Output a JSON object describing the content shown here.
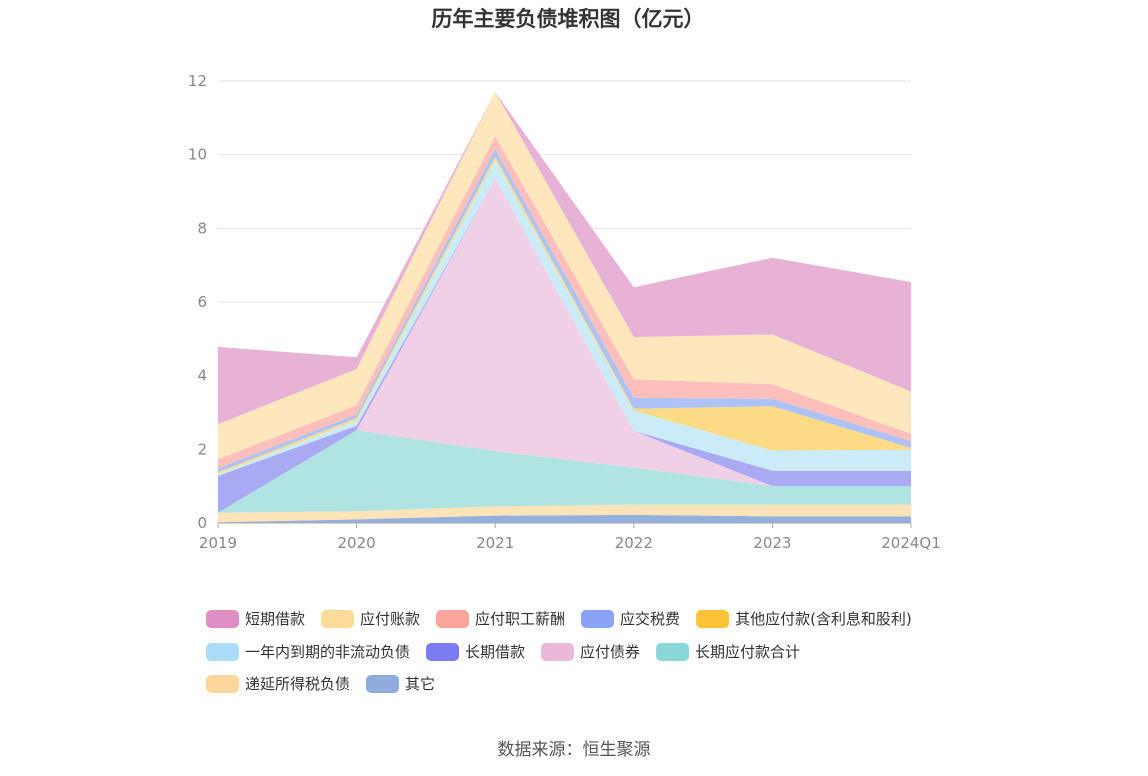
{
  "chart_data": {
    "type": "area",
    "stacked": true,
    "title": "历年主要负债堆积图（亿元）",
    "source": "数据来源：恒生聚源",
    "categories": [
      "2019",
      "2020",
      "2021",
      "2022",
      "2023",
      "2024Q1"
    ],
    "ylim": [
      0,
      12
    ],
    "yticks": [
      "0",
      "2",
      "4",
      "6",
      "8",
      "10",
      "12"
    ],
    "grid": true,
    "legend_position": "bottom",
    "series": [
      {
        "name": "其它",
        "color": "#8eacdc",
        "values": [
          0.02,
          0.1,
          0.2,
          0.22,
          0.18,
          0.18
        ]
      },
      {
        "name": "递延所得税负债",
        "color": "#fde2b4",
        "values": [
          0.26,
          0.22,
          0.25,
          0.28,
          0.32,
          0.32
        ]
      },
      {
        "name": "长期应付款合计",
        "color": "#abe3e1",
        "values": [
          0.0,
          2.2,
          1.5,
          1.0,
          0.5,
          0.5
        ]
      },
      {
        "name": "应付债券",
        "color": "#efcde5",
        "values": [
          0.0,
          0.0,
          7.4,
          1.0,
          0.0,
          0.0
        ]
      },
      {
        "name": "长期借款",
        "color": "#a5a4f3",
        "values": [
          1.0,
          0.12,
          0.0,
          0.0,
          0.42,
          0.42
        ]
      },
      {
        "name": "一年内到期的非流动负债",
        "color": "#c8eaf8",
        "values": [
          0.05,
          0.15,
          0.5,
          0.55,
          0.55,
          0.57
        ]
      },
      {
        "name": "其他应付款(含利息和股利)",
        "color": "#fdd87e",
        "values": [
          0.05,
          0.06,
          0.1,
          0.05,
          1.2,
          0.05
        ]
      },
      {
        "name": "应交税费",
        "color": "#a9c0f7",
        "values": [
          0.1,
          0.1,
          0.2,
          0.3,
          0.2,
          0.18
        ]
      },
      {
        "name": "应付职工薪酬",
        "color": "#fdbcb8",
        "values": [
          0.25,
          0.25,
          0.35,
          0.5,
          0.4,
          0.2
        ]
      },
      {
        "name": "应付账款",
        "color": "#fee6b9",
        "values": [
          0.95,
          0.98,
          1.2,
          1.15,
          1.35,
          1.15
        ]
      },
      {
        "name": "短期借款",
        "color": "#e6aed3",
        "values": [
          2.1,
          0.32,
          0.0,
          1.35,
          2.08,
          2.97
        ]
      }
    ],
    "legend": [
      {
        "name": "短期借款",
        "color": "#dd8fc3"
      },
      {
        "name": "应付账款",
        "color": "#fedb99"
      },
      {
        "name": "应付职工薪酬",
        "color": "#fba49c"
      },
      {
        "name": "应交税费",
        "color": "#89a4f6"
      },
      {
        "name": "其他应付款(含利息和股利)",
        "color": "#fdc437"
      },
      {
        "name": "一年内到期的非流动负债",
        "color": "#aadcf7"
      },
      {
        "name": "长期借款",
        "color": "#7c7cf2"
      },
      {
        "name": "应付债券",
        "color": "#e9b9da"
      },
      {
        "name": "长期应付款合计",
        "color": "#89d7d7"
      },
      {
        "name": "递延所得税负债",
        "color": "#fed79b"
      },
      {
        "name": "其它",
        "color": "#8eacdc"
      }
    ]
  }
}
